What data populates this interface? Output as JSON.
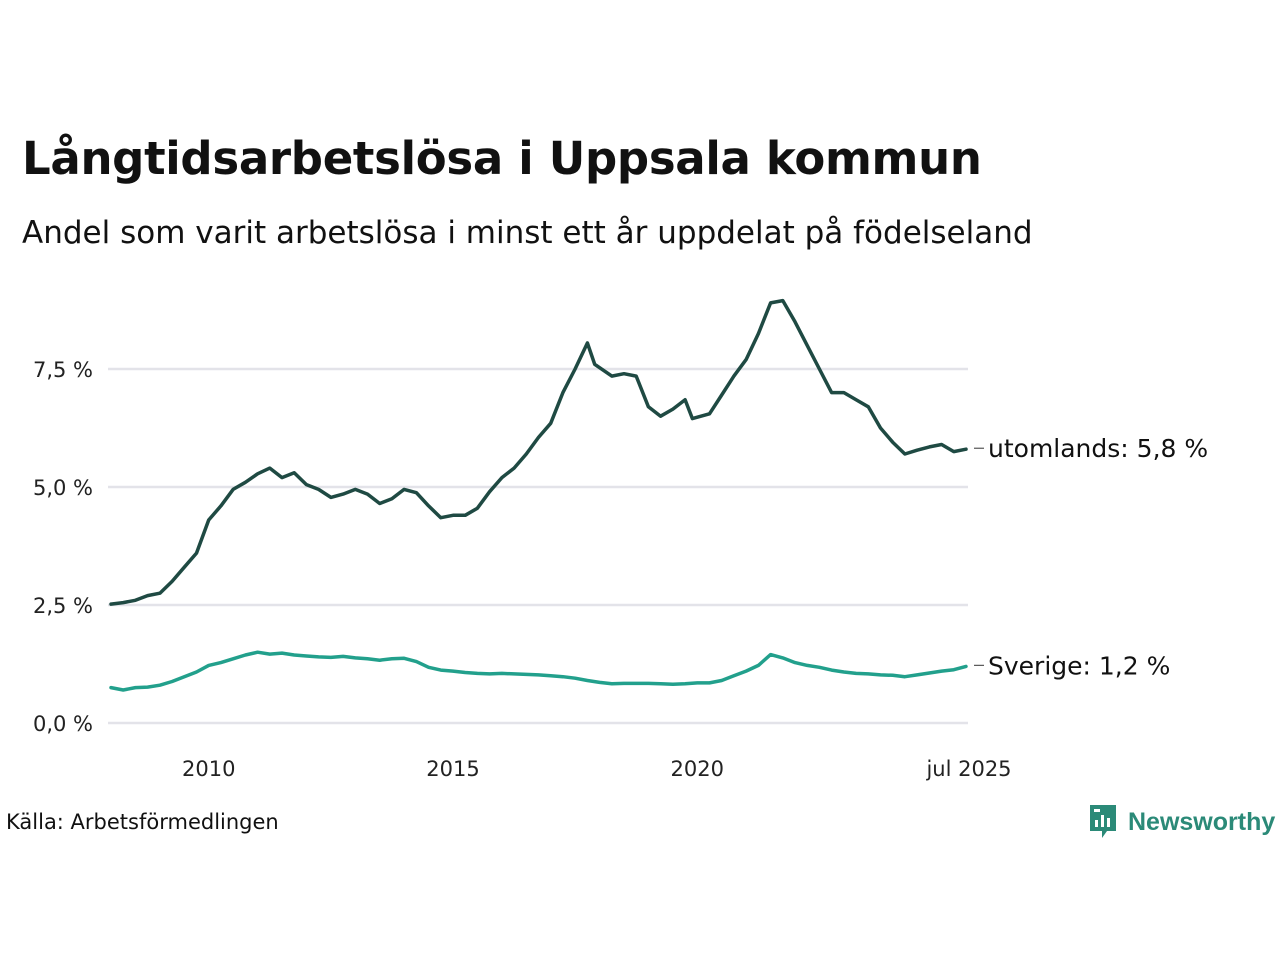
{
  "title": "Långtidsarbetslösa i Uppsala kommun",
  "subtitle": "Andel som varit arbetslösa i minst ett år uppdelat på födelseland",
  "source": "Källa: Arbetsförmedlingen",
  "brand": {
    "name": "Newsworthy",
    "icon": "newsworthy-logo-icon",
    "color": "#2b8a78"
  },
  "chart_data": {
    "type": "line",
    "y_ticks": [
      "0,0 %",
      "2,5 %",
      "5,0 %",
      "7,5 %"
    ],
    "y_tick_values": [
      0,
      2.5,
      5,
      7.5
    ],
    "x_ticks": [
      "2010",
      "2015",
      "2020",
      "jul 2025"
    ],
    "x_tick_values": [
      2010,
      2015,
      2020,
      2025.5
    ],
    "xlim": [
      2008.0,
      2025.5
    ],
    "ylim": [
      0,
      9
    ],
    "grid": "horizontal",
    "colors": {
      "utomlands": "#1f4a43",
      "sverige": "#22a08c",
      "grid": "#e3e3e9"
    },
    "series": [
      {
        "name": "utomlands",
        "end_label": "utomlands: 5,8 %",
        "points": [
          [
            2008.0,
            2.52
          ],
          [
            2008.25,
            2.55
          ],
          [
            2008.5,
            2.6
          ],
          [
            2008.75,
            2.7
          ],
          [
            2009.0,
            2.75
          ],
          [
            2009.25,
            3.0
          ],
          [
            2009.5,
            3.3
          ],
          [
            2009.75,
            3.6
          ],
          [
            2010.0,
            4.3
          ],
          [
            2010.25,
            4.6
          ],
          [
            2010.5,
            4.95
          ],
          [
            2010.75,
            5.1
          ],
          [
            2011.0,
            5.28
          ],
          [
            2011.25,
            5.4
          ],
          [
            2011.5,
            5.2
          ],
          [
            2011.75,
            5.3
          ],
          [
            2012.0,
            5.05
          ],
          [
            2012.25,
            4.95
          ],
          [
            2012.5,
            4.78
          ],
          [
            2012.75,
            4.85
          ],
          [
            2013.0,
            4.95
          ],
          [
            2013.25,
            4.85
          ],
          [
            2013.5,
            4.65
          ],
          [
            2013.75,
            4.75
          ],
          [
            2014.0,
            4.95
          ],
          [
            2014.25,
            4.88
          ],
          [
            2014.5,
            4.6
          ],
          [
            2014.75,
            4.35
          ],
          [
            2015.0,
            4.4
          ],
          [
            2015.25,
            4.4
          ],
          [
            2015.5,
            4.55
          ],
          [
            2015.75,
            4.9
          ],
          [
            2016.0,
            5.2
          ],
          [
            2016.25,
            5.4
          ],
          [
            2016.5,
            5.7
          ],
          [
            2016.75,
            6.05
          ],
          [
            2017.0,
            6.35
          ],
          [
            2017.25,
            7.0
          ],
          [
            2017.5,
            7.5
          ],
          [
            2017.75,
            8.05
          ],
          [
            2017.9,
            7.6
          ],
          [
            2018.25,
            7.35
          ],
          [
            2018.5,
            7.4
          ],
          [
            2018.75,
            7.35
          ],
          [
            2019.0,
            6.7
          ],
          [
            2019.25,
            6.5
          ],
          [
            2019.5,
            6.65
          ],
          [
            2019.75,
            6.85
          ],
          [
            2019.9,
            6.45
          ],
          [
            2020.25,
            6.55
          ],
          [
            2020.5,
            6.95
          ],
          [
            2020.75,
            7.35
          ],
          [
            2021.0,
            7.7
          ],
          [
            2021.25,
            8.25
          ],
          [
            2021.5,
            8.9
          ],
          [
            2021.75,
            8.95
          ],
          [
            2022.0,
            8.5
          ],
          [
            2022.25,
            8.0
          ],
          [
            2022.5,
            7.5
          ],
          [
            2022.75,
            7.0
          ],
          [
            2023.0,
            7.0
          ],
          [
            2023.25,
            6.85
          ],
          [
            2023.5,
            6.7
          ],
          [
            2023.75,
            6.25
          ],
          [
            2024.0,
            5.95
          ],
          [
            2024.25,
            5.7
          ],
          [
            2024.5,
            5.78
          ],
          [
            2024.75,
            5.85
          ],
          [
            2025.0,
            5.9
          ],
          [
            2025.25,
            5.75
          ],
          [
            2025.5,
            5.8
          ]
        ]
      },
      {
        "name": "Sverige",
        "end_label": "Sverige: 1,2 %",
        "points": [
          [
            2008.0,
            0.75
          ],
          [
            2008.25,
            0.7
          ],
          [
            2008.5,
            0.75
          ],
          [
            2008.75,
            0.76
          ],
          [
            2009.0,
            0.8
          ],
          [
            2009.25,
            0.88
          ],
          [
            2009.5,
            0.98
          ],
          [
            2009.75,
            1.08
          ],
          [
            2010.0,
            1.22
          ],
          [
            2010.25,
            1.28
          ],
          [
            2010.5,
            1.36
          ],
          [
            2010.75,
            1.44
          ],
          [
            2011.0,
            1.5
          ],
          [
            2011.25,
            1.46
          ],
          [
            2011.5,
            1.48
          ],
          [
            2011.75,
            1.44
          ],
          [
            2012.0,
            1.42
          ],
          [
            2012.25,
            1.4
          ],
          [
            2012.5,
            1.39
          ],
          [
            2012.75,
            1.41
          ],
          [
            2013.0,
            1.38
          ],
          [
            2013.25,
            1.36
          ],
          [
            2013.5,
            1.33
          ],
          [
            2013.75,
            1.36
          ],
          [
            2014.0,
            1.37
          ],
          [
            2014.25,
            1.3
          ],
          [
            2014.5,
            1.18
          ],
          [
            2014.75,
            1.12
          ],
          [
            2015.0,
            1.1
          ],
          [
            2015.25,
            1.07
          ],
          [
            2015.5,
            1.05
          ],
          [
            2015.75,
            1.04
          ],
          [
            2016.0,
            1.05
          ],
          [
            2016.25,
            1.04
          ],
          [
            2016.5,
            1.03
          ],
          [
            2016.75,
            1.02
          ],
          [
            2017.0,
            1.0
          ],
          [
            2017.25,
            0.98
          ],
          [
            2017.5,
            0.95
          ],
          [
            2017.75,
            0.9
          ],
          [
            2018.0,
            0.86
          ],
          [
            2018.25,
            0.83
          ],
          [
            2018.5,
            0.84
          ],
          [
            2018.75,
            0.84
          ],
          [
            2019.0,
            0.84
          ],
          [
            2019.25,
            0.83
          ],
          [
            2019.5,
            0.82
          ],
          [
            2019.75,
            0.83
          ],
          [
            2020.0,
            0.85
          ],
          [
            2020.25,
            0.85
          ],
          [
            2020.5,
            0.9
          ],
          [
            2020.75,
            1.0
          ],
          [
            2021.0,
            1.1
          ],
          [
            2021.25,
            1.22
          ],
          [
            2021.5,
            1.45
          ],
          [
            2021.75,
            1.38
          ],
          [
            2022.0,
            1.28
          ],
          [
            2022.25,
            1.22
          ],
          [
            2022.5,
            1.18
          ],
          [
            2022.75,
            1.12
          ],
          [
            2023.0,
            1.08
          ],
          [
            2023.25,
            1.05
          ],
          [
            2023.5,
            1.04
          ],
          [
            2023.75,
            1.02
          ],
          [
            2024.0,
            1.01
          ],
          [
            2024.25,
            0.98
          ],
          [
            2024.5,
            1.02
          ],
          [
            2024.75,
            1.06
          ],
          [
            2025.0,
            1.1
          ],
          [
            2025.25,
            1.13
          ],
          [
            2025.5,
            1.2
          ]
        ]
      }
    ]
  }
}
